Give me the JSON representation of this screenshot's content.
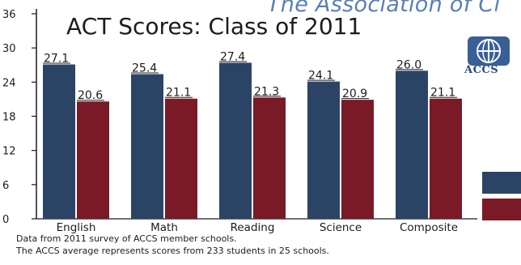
{
  "header": {
    "banner": "The Association of Cl",
    "title": "ACT Scores: Class of 2011"
  },
  "logo": {
    "text": "ACCS"
  },
  "notes": [
    "Data from 2011 survey of ACCS member schools.",
    "The ACCS average represents scores from 233 students in 25 schools."
  ],
  "colors": {
    "series1": "#2b4466",
    "series2": "#7a1a26"
  },
  "chart_data": {
    "type": "bar",
    "categories": [
      "English",
      "Math",
      "Reading",
      "Science",
      "Composite"
    ],
    "series": [
      {
        "values": [
          27.1,
          25.4,
          27.4,
          24.1,
          26.0
        ],
        "labels": [
          "27.1",
          "25.4",
          "27.4",
          "24.1",
          "26.0"
        ]
      },
      {
        "values": [
          20.6,
          21.1,
          21.3,
          20.9,
          21.1
        ],
        "labels": [
          "20.6",
          "21.1",
          "21.3",
          "20.9",
          "21.1"
        ]
      }
    ],
    "ylim": [
      0,
      36
    ],
    "yticks": [
      "0",
      "6",
      "12",
      "18",
      "24",
      "30",
      "36"
    ],
    "legend": "right",
    "grid": false
  }
}
